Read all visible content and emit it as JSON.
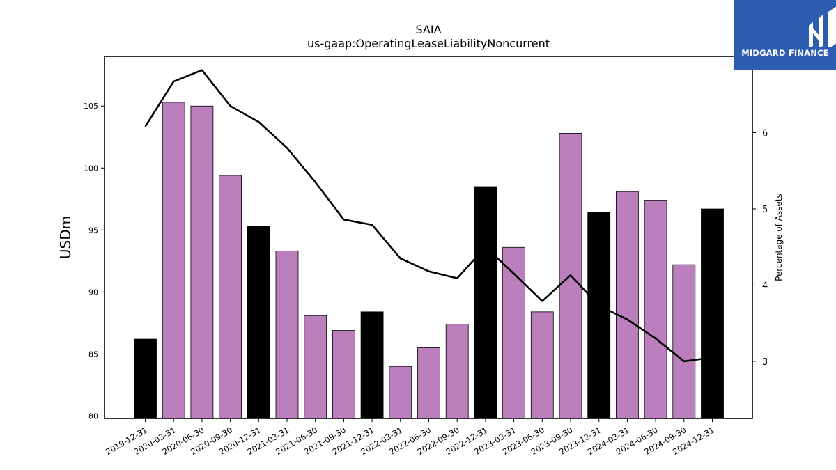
{
  "chart_data": {
    "type": "bar",
    "title": "SAIA",
    "subtitle": "us-gaap:OperatingLeaseLiabilityNoncurrent",
    "ylabel": "USDm",
    "y2label": "Percentage of Assets",
    "ylim": [
      79.8,
      109.0
    ],
    "y2lim": [
      2.25,
      7.0
    ],
    "yticks": [
      80,
      85,
      90,
      95,
      100,
      105
    ],
    "y2ticks": [
      3,
      4,
      5,
      6
    ],
    "categories": [
      "2019-12-31",
      "2020-03-31",
      "2020-06-30",
      "2020-09-30",
      "2020-12-31",
      "2021-03-31",
      "2021-06-30",
      "2021-09-30",
      "2021-12-31",
      "2022-03-31",
      "2022-06-30",
      "2022-09-30",
      "2022-12-31",
      "2023-03-31",
      "2023-06-30",
      "2023-09-30",
      "2023-12-31",
      "2024-03-31",
      "2024-06-30",
      "2024-09-30",
      "2024-12-31"
    ],
    "series": [
      {
        "kind": "bar",
        "axis": "left",
        "values": [
          86.2,
          105.3,
          105.0,
          99.4,
          95.3,
          93.3,
          88.1,
          86.9,
          88.4,
          84.0,
          85.5,
          87.4,
          98.5,
          93.6,
          88.4,
          102.8,
          96.4,
          98.1,
          97.4,
          92.2,
          96.7
        ],
        "year_end": [
          true,
          false,
          false,
          false,
          true,
          false,
          false,
          false,
          true,
          false,
          false,
          false,
          true,
          false,
          false,
          false,
          true,
          false,
          false,
          false,
          true
        ]
      },
      {
        "kind": "line",
        "axis": "right",
        "values": [
          6.08,
          6.67,
          6.82,
          6.35,
          6.14,
          5.8,
          5.35,
          4.86,
          4.79,
          4.35,
          4.18,
          4.09,
          4.5,
          4.15,
          3.79,
          4.13,
          3.73,
          3.55,
          3.3,
          3.0,
          3.05
        ]
      }
    ],
    "colors": {
      "bar": "#bb7fbd",
      "bar_year_end": "#000000",
      "line": "#000000"
    },
    "grid": false,
    "legend": "none"
  },
  "logo": {
    "text": "MIDGARD FINANCE",
    "background": "#2d5db0"
  }
}
